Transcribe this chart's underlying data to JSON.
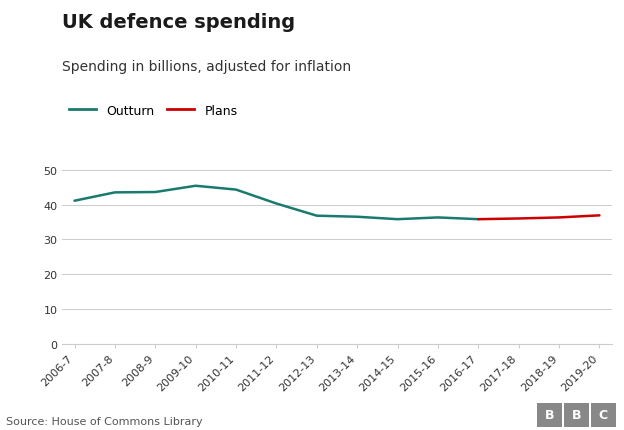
{
  "title": "UK defence spending",
  "subtitle": "Spending in billions, adjusted for inflation",
  "source": "Source: House of Commons Library",
  "all_labels": [
    "2006-7",
    "2007-8",
    "2008-9",
    "2009-10",
    "2010-11",
    "2011-12",
    "2012-13",
    "2013-14",
    "2014-15",
    "2015-16",
    "2016-17",
    "2017-18",
    "2018-19",
    "2019-20"
  ],
  "outturn_labels": [
    "2006-7",
    "2007-8",
    "2008-9",
    "2009-10",
    "2010-11",
    "2011-12",
    "2012-13",
    "2013-14",
    "2014-15",
    "2015-16",
    "2016-17"
  ],
  "outturn_values": [
    41.1,
    43.5,
    43.6,
    45.4,
    44.3,
    40.3,
    36.8,
    36.5,
    35.8,
    36.3,
    35.8
  ],
  "plans_labels": [
    "2016-17",
    "2017-18",
    "2018-19",
    "2019-20"
  ],
  "plans_values": [
    35.8,
    36.0,
    36.3,
    36.9
  ],
  "outturn_color": "#1a7a6e",
  "plans_color": "#cc0000",
  "ylim": [
    0,
    52
  ],
  "yticks": [
    0,
    10,
    20,
    30,
    40,
    50
  ],
  "background_color": "#ffffff",
  "grid_color": "#cccccc",
  "title_fontsize": 14,
  "subtitle_fontsize": 10,
  "tick_fontsize": 8,
  "legend_fontsize": 9,
  "source_fontsize": 8,
  "line_width": 1.8,
  "bbc_bg": "#888888"
}
